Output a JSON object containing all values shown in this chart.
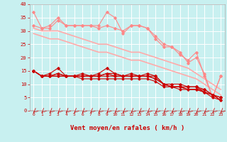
{
  "bg_color": "#c8f0f0",
  "grid_color": "#ffffff",
  "xlabel": "Vent moyen/en rafales ( km/h )",
  "xlabel_color": "#cc0000",
  "tick_color": "#cc0000",
  "xlim": [
    -0.5,
    23.5
  ],
  "ylim": [
    0,
    40
  ],
  "xticks": [
    0,
    1,
    2,
    3,
    4,
    5,
    6,
    7,
    8,
    9,
    10,
    11,
    12,
    13,
    14,
    15,
    16,
    17,
    18,
    19,
    20,
    21,
    22,
    23
  ],
  "yticks": [
    0,
    5,
    10,
    15,
    20,
    25,
    30,
    35,
    40
  ],
  "lines": [
    {
      "x": [
        0,
        1,
        2,
        3,
        4,
        5,
        6,
        7,
        8,
        9,
        10,
        11,
        12,
        13,
        14,
        15,
        16,
        17,
        18,
        19,
        20,
        21,
        22,
        23
      ],
      "y": [
        37,
        31,
        32,
        35,
        32,
        32,
        32,
        32,
        32,
        37,
        35,
        29,
        32,
        32,
        31,
        27,
        24,
        24,
        21,
        19,
        22,
        13,
        5,
        13
      ],
      "color": "#ff8888",
      "lw": 0.8,
      "marker": "D",
      "ms": 1.8
    },
    {
      "x": [
        0,
        1,
        2,
        3,
        4,
        5,
        6,
        7,
        8,
        9,
        10,
        11,
        12,
        13,
        14,
        15,
        16,
        17,
        18,
        19,
        20,
        21,
        22,
        23
      ],
      "y": [
        32,
        31,
        31,
        34,
        32,
        32,
        32,
        32,
        31,
        32,
        31,
        30,
        32,
        32,
        31,
        28,
        25,
        24,
        22,
        18,
        20,
        14,
        5,
        13
      ],
      "color": "#ff8888",
      "lw": 0.8,
      "marker": "D",
      "ms": 1.8
    },
    {
      "x": [
        0,
        1,
        2,
        3,
        4,
        5,
        6,
        7,
        8,
        9,
        10,
        11,
        12,
        13,
        14,
        15,
        16,
        17,
        18,
        19,
        20,
        21,
        22,
        23
      ],
      "y": [
        31,
        30,
        30,
        30,
        29,
        28,
        27,
        26,
        25,
        25,
        24,
        23,
        22,
        22,
        21,
        20,
        19,
        18,
        17,
        16,
        14,
        12,
        10,
        8
      ],
      "color": "#ffaaaa",
      "lw": 1.2,
      "marker": null,
      "ms": 0
    },
    {
      "x": [
        0,
        1,
        2,
        3,
        4,
        5,
        6,
        7,
        8,
        9,
        10,
        11,
        12,
        13,
        14,
        15,
        16,
        17,
        18,
        19,
        20,
        21,
        22,
        23
      ],
      "y": [
        29,
        28,
        27,
        27,
        26,
        25,
        24,
        23,
        22,
        22,
        21,
        20,
        19,
        19,
        18,
        17,
        16,
        15,
        14,
        13,
        12,
        10,
        8,
        6
      ],
      "color": "#ffaaaa",
      "lw": 1.2,
      "marker": null,
      "ms": 0
    },
    {
      "x": [
        0,
        1,
        2,
        3,
        4,
        5,
        6,
        7,
        8,
        9,
        10,
        11,
        12,
        13,
        14,
        15,
        16,
        17,
        18,
        19,
        20,
        21,
        22,
        23
      ],
      "y": [
        15,
        13,
        14,
        16,
        13,
        13,
        14,
        13,
        14,
        16,
        14,
        13,
        14,
        13,
        14,
        13,
        10,
        10,
        10,
        9,
        9,
        8,
        6,
        5
      ],
      "color": "#cc0000",
      "lw": 0.8,
      "marker": "D",
      "ms": 1.8
    },
    {
      "x": [
        0,
        1,
        2,
        3,
        4,
        5,
        6,
        7,
        8,
        9,
        10,
        11,
        12,
        13,
        14,
        15,
        16,
        17,
        18,
        19,
        20,
        21,
        22,
        23
      ],
      "y": [
        15,
        13,
        13,
        14,
        13,
        13,
        13,
        13,
        13,
        14,
        13,
        13,
        13,
        13,
        13,
        13,
        10,
        9,
        9,
        9,
        9,
        7,
        6,
        5
      ],
      "color": "#cc0000",
      "lw": 0.8,
      "marker": "D",
      "ms": 1.8
    },
    {
      "x": [
        0,
        1,
        2,
        3,
        4,
        5,
        6,
        7,
        8,
        9,
        10,
        11,
        12,
        13,
        14,
        15,
        16,
        17,
        18,
        19,
        20,
        21,
        22,
        23
      ],
      "y": [
        15,
        13,
        13,
        14,
        13,
        13,
        13,
        13,
        13,
        14,
        14,
        13,
        13,
        13,
        13,
        12,
        10,
        9,
        9,
        8,
        8,
        8,
        6,
        4
      ],
      "color": "#cc0000",
      "lw": 0.8,
      "marker": "D",
      "ms": 1.5
    },
    {
      "x": [
        0,
        1,
        2,
        3,
        4,
        5,
        6,
        7,
        8,
        9,
        10,
        11,
        12,
        13,
        14,
        15,
        16,
        17,
        18,
        19,
        20,
        21,
        22,
        23
      ],
      "y": [
        15,
        13,
        13,
        13,
        13,
        13,
        13,
        13,
        13,
        13,
        13,
        13,
        13,
        13,
        13,
        12,
        10,
        9,
        9,
        8,
        8,
        7,
        6,
        4
      ],
      "color": "#cc0000",
      "lw": 0.8,
      "marker": "D",
      "ms": 1.5
    },
    {
      "x": [
        0,
        1,
        2,
        3,
        4,
        5,
        6,
        7,
        8,
        9,
        10,
        11,
        12,
        13,
        14,
        15,
        16,
        17,
        18,
        19,
        20,
        21,
        22,
        23
      ],
      "y": [
        15,
        13,
        13,
        13,
        13,
        13,
        12,
        12,
        12,
        12,
        12,
        12,
        12,
        12,
        12,
        11,
        9,
        9,
        8,
        8,
        8,
        7,
        5,
        4
      ],
      "color": "#cc0000",
      "lw": 0.8,
      "marker": "D",
      "ms": 1.5
    }
  ],
  "arrow_color": "#cc0000",
  "spine_color": "#aaaaaa",
  "title": ""
}
